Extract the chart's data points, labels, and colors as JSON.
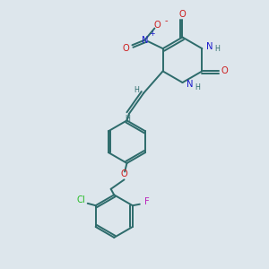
{
  "bg_color": "#dde6ec",
  "bond_color": "#2d6b6b",
  "n_color": "#1a1acc",
  "o_color": "#cc1a1a",
  "cl_color": "#22bb22",
  "f_color": "#bb22bb",
  "figsize": [
    3.0,
    3.0
  ],
  "dpi": 100,
  "xlim": [
    0,
    10
  ],
  "ylim": [
    0,
    10
  ]
}
